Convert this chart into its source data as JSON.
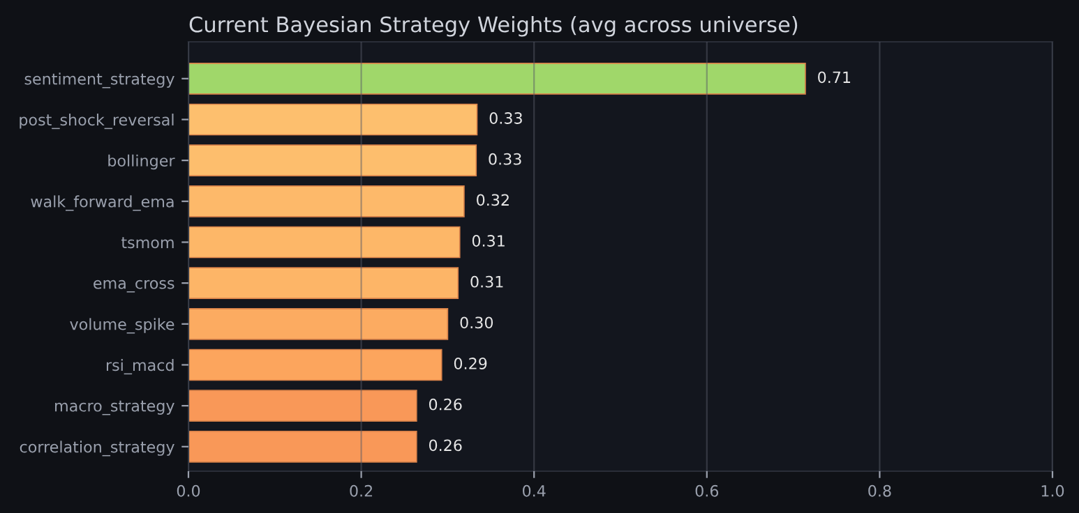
{
  "chart_data": {
    "type": "bar",
    "orientation": "horizontal",
    "title": "Current Bayesian Strategy Weights (avg across universe)",
    "categories": [
      "sentiment_strategy",
      "post_shock_reversal",
      "bollinger",
      "walk_forward_ema",
      "tsmom",
      "ema_cross",
      "volume_spike",
      "rsi_macd",
      "macro_strategy",
      "correlation_strategy"
    ],
    "values": [
      0.714,
      0.334,
      0.333,
      0.319,
      0.314,
      0.312,
      0.3,
      0.293,
      0.264,
      0.264
    ],
    "value_labels": [
      "0.71",
      "0.33",
      "0.33",
      "0.32",
      "0.31",
      "0.31",
      "0.30",
      "0.29",
      "0.26",
      "0.26"
    ],
    "colors": [
      "#a0d76a",
      "#fdbf6e",
      "#fdbe6d",
      "#fdb96a",
      "#fdb768",
      "#fdb567",
      "#fcab61",
      "#fca55d",
      "#f99858",
      "#f99858"
    ],
    "xlim": [
      0,
      1.0
    ],
    "xticks": [
      {
        "value": 0,
        "label": "0.0"
      },
      0.2,
      0.4,
      0.6,
      0.8,
      {
        "value": 1,
        "label": "1.0"
      }
    ],
    "grid": "x"
  }
}
